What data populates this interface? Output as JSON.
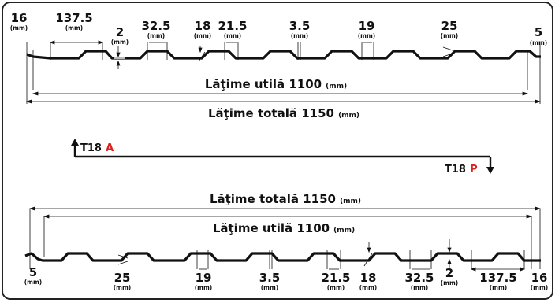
{
  "top_dims": [
    {
      "value": "16",
      "unit": "(mm)"
    },
    {
      "value": "137.5",
      "unit": "(mm)"
    },
    {
      "value": "2",
      "unit": "(mm)"
    },
    {
      "value": "32.5",
      "unit": "(mm)"
    },
    {
      "value": "18",
      "unit": "(mm)"
    },
    {
      "value": "21.5",
      "unit": "(mm)"
    },
    {
      "value": "3.5",
      "unit": "(mm)"
    },
    {
      "value": "19",
      "unit": "(mm)"
    },
    {
      "value": "25",
      "unit": "(mm)"
    },
    {
      "value": "5",
      "unit": "(mm)"
    }
  ],
  "bottom_dims": [
    {
      "value": "5",
      "unit": "(mm)"
    },
    {
      "value": "25",
      "unit": "(mm)"
    },
    {
      "value": "19",
      "unit": "(mm)"
    },
    {
      "value": "3.5",
      "unit": "(mm)"
    },
    {
      "value": "21.5",
      "unit": "(mm)"
    },
    {
      "value": "18",
      "unit": "(mm)"
    },
    {
      "value": "32.5",
      "unit": "(mm)"
    },
    {
      "value": "2",
      "unit": "(mm)"
    },
    {
      "value": "137.5",
      "unit": "(mm)"
    },
    {
      "value": "16",
      "unit": "(mm)"
    }
  ],
  "useful_width": {
    "text": "Lăţime utilă 1100",
    "unit": "(mm)"
  },
  "total_width": {
    "text": "Lăţime totală 1150",
    "unit": "(mm)"
  },
  "label_a": {
    "code": "T18",
    "letter": "A"
  },
  "label_p": {
    "code": "T18",
    "letter": "P"
  },
  "colors": {
    "line": "#111111",
    "accent": "#e02020",
    "border": "#222222"
  }
}
